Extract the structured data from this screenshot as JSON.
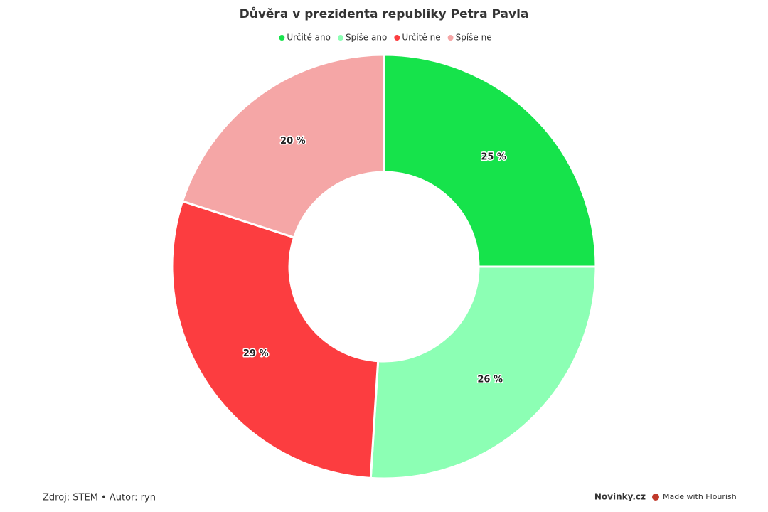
{
  "chart_data": {
    "type": "donut",
    "title": "Důvěra v prezidenta republiky Petra Pavla",
    "categories": [
      "Určitě ano",
      "Spíše ano",
      "Určitě ne",
      "Spíše ne"
    ],
    "values": [
      25,
      26,
      29,
      20
    ],
    "value_labels": [
      "25 %",
      "26 %",
      "29 %",
      "20 %"
    ],
    "colors": [
      "#16e34b",
      "#8cffb4",
      "#fc3d40",
      "#f5a6a6"
    ],
    "legend": "top"
  },
  "footer": {
    "source": "Zdroj: STEM • Autor: ryn",
    "brand": "Novinky.cz",
    "made_with": "Made with Flourish"
  }
}
